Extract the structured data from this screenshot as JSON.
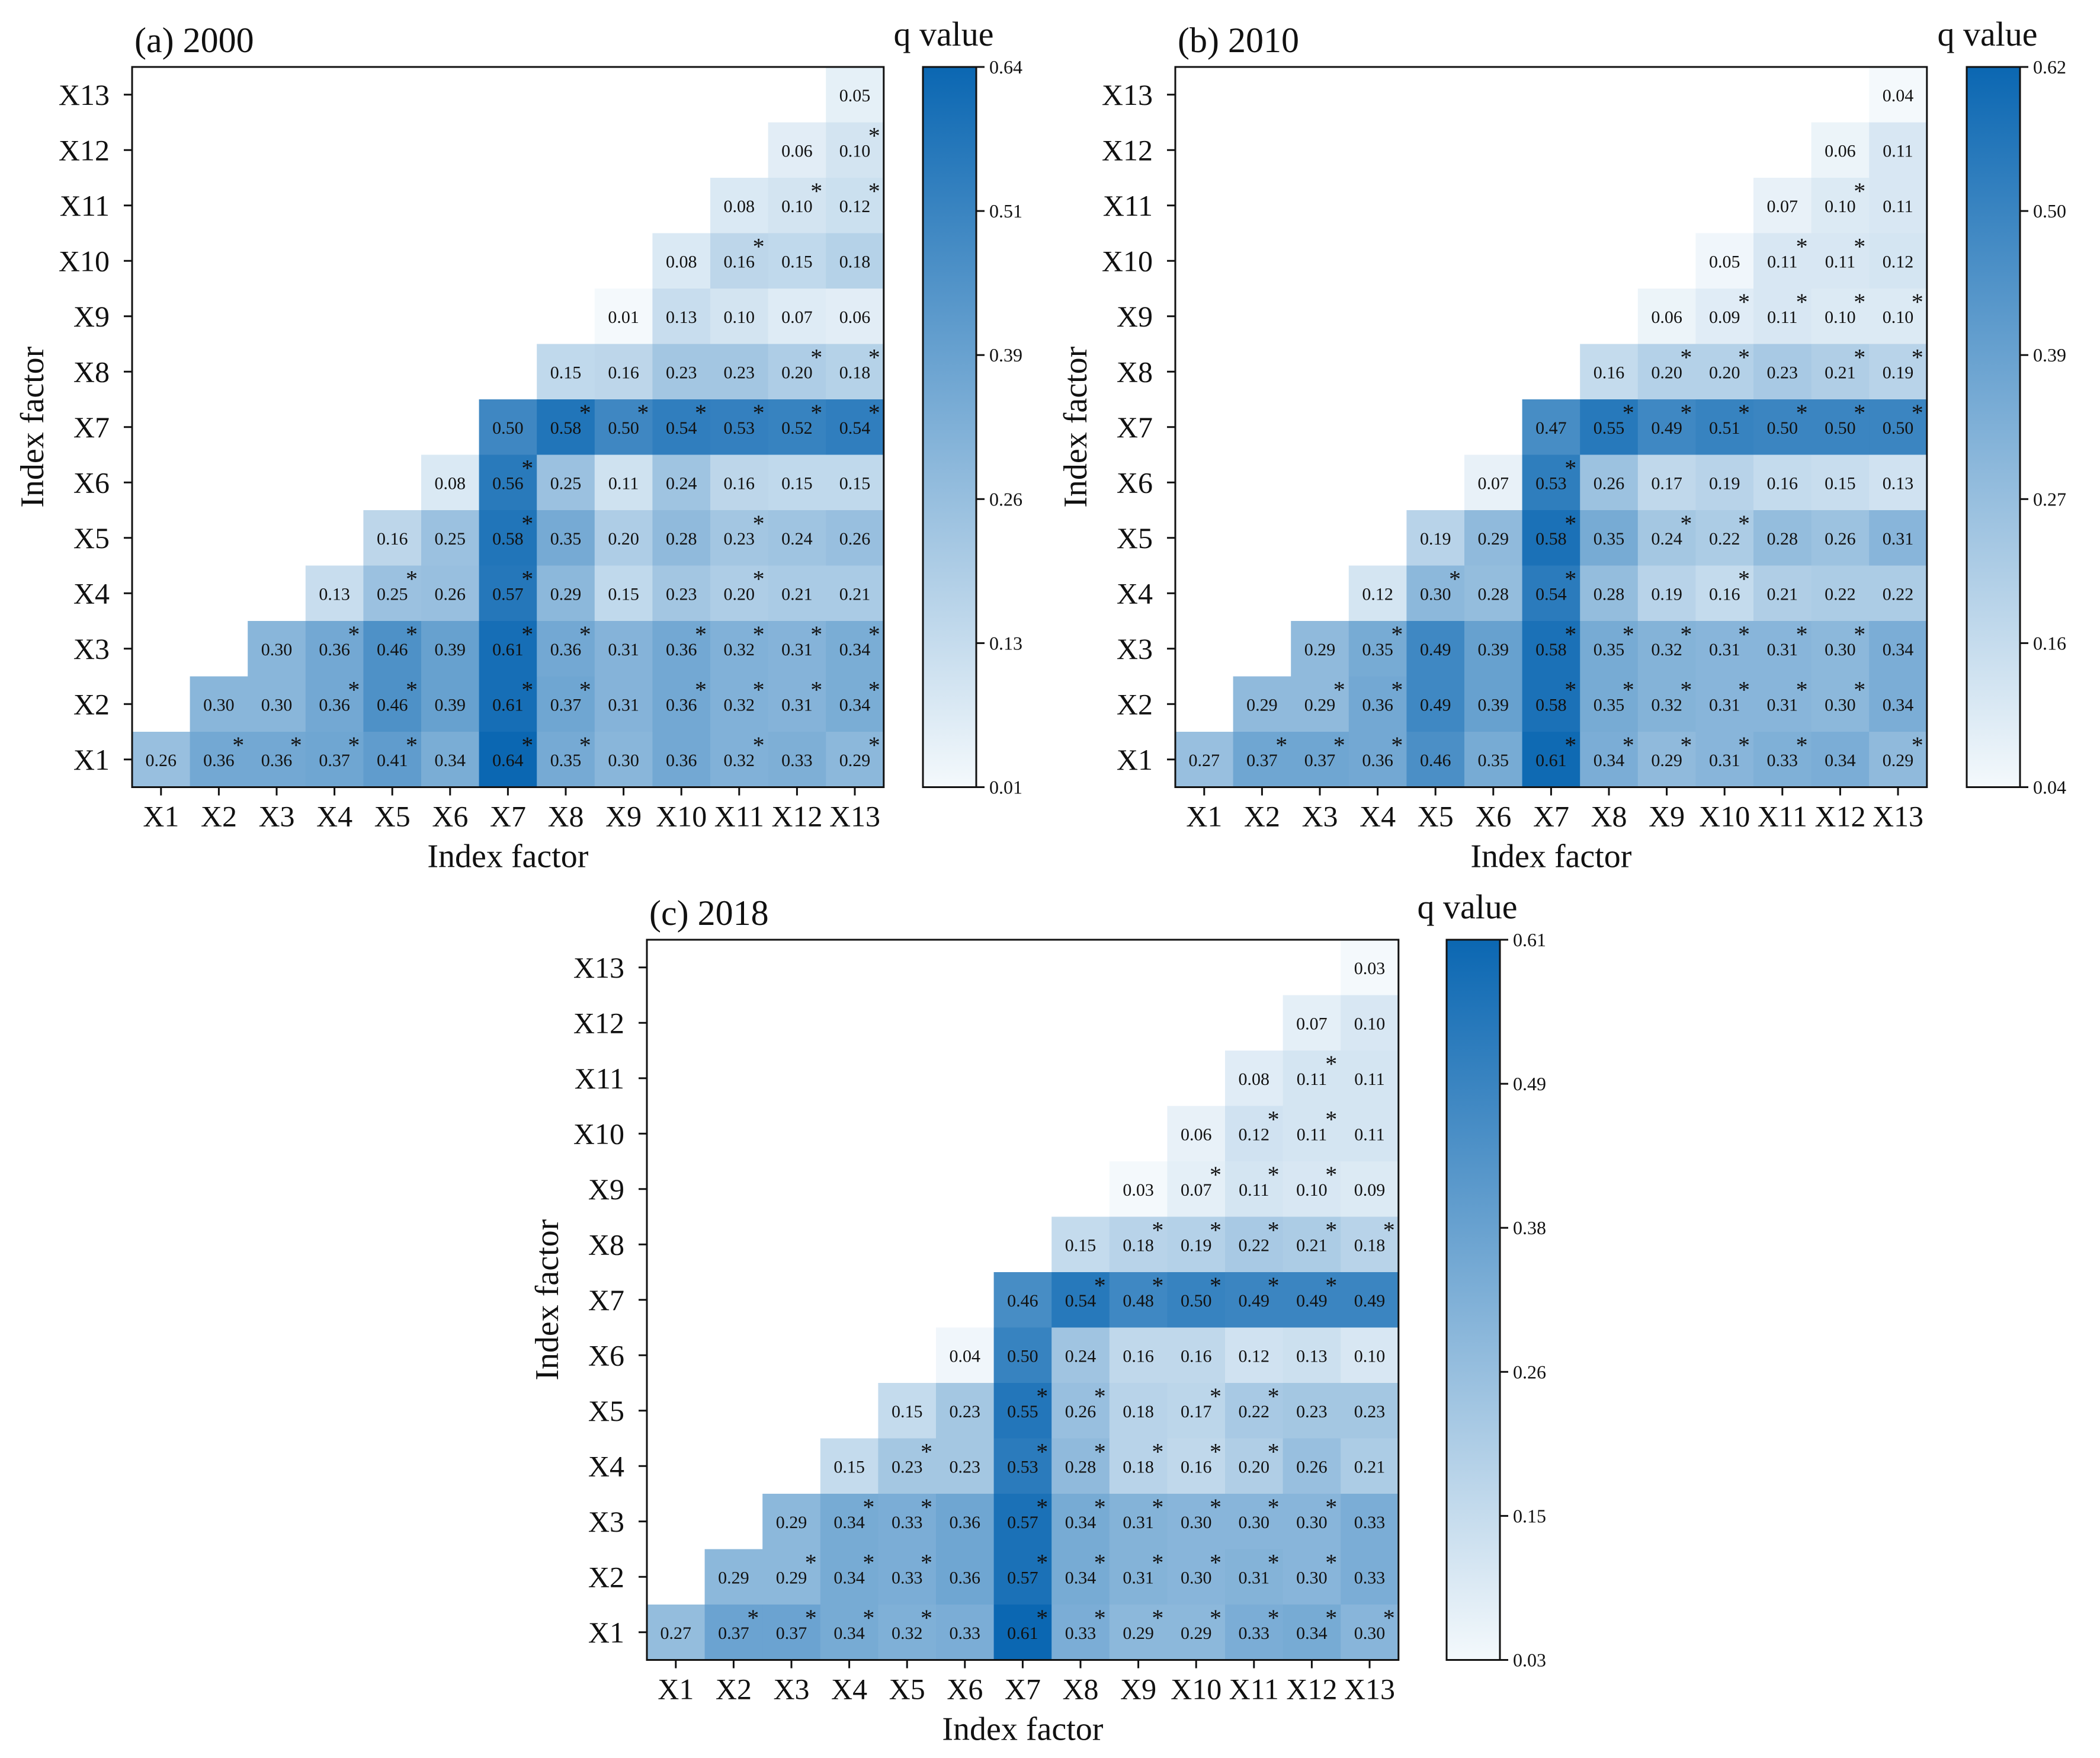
{
  "figure": {
    "colors": {
      "low": "#f4f9fc",
      "high": "#0b67b2",
      "text": "#111111"
    },
    "colorbar_title": "q value"
  },
  "chart_data": [
    {
      "type": "heatmap",
      "title": "(a) 2000",
      "xlabel": "Index factor",
      "ylabel": "Index factor",
      "categories": [
        "X1",
        "X2",
        "X3",
        "X4",
        "X5",
        "X6",
        "X7",
        "X8",
        "X9",
        "X10",
        "X11",
        "X12",
        "X13"
      ],
      "colorbar": {
        "min": 0.01,
        "max": 0.64,
        "ticks": [
          "0.01",
          "0.13",
          "0.26",
          "0.39",
          "0.51",
          "0.64"
        ]
      },
      "rows": [
        {
          "y": "X13",
          "start": 12,
          "values": [
            "0.05"
          ],
          "stars": [
            0
          ]
        },
        {
          "y": "X12",
          "start": 11,
          "values": [
            "0.06",
            "0.10"
          ],
          "stars": [
            0,
            1
          ]
        },
        {
          "y": "X11",
          "start": 10,
          "values": [
            "0.08",
            "0.10",
            "0.12"
          ],
          "stars": [
            0,
            1,
            1
          ]
        },
        {
          "y": "X10",
          "start": 9,
          "values": [
            "0.08",
            "0.16",
            "0.15",
            "0.18"
          ],
          "stars": [
            0,
            1,
            0,
            0
          ]
        },
        {
          "y": "X9",
          "start": 8,
          "values": [
            "0.01",
            "0.13",
            "0.10",
            "0.07",
            "0.06"
          ],
          "stars": [
            0,
            0,
            0,
            0,
            0
          ]
        },
        {
          "y": "X8",
          "start": 7,
          "values": [
            "0.15",
            "0.16",
            "0.23",
            "0.23",
            "0.20",
            "0.18"
          ],
          "stars": [
            0,
            0,
            0,
            0,
            1,
            1
          ]
        },
        {
          "y": "X7",
          "start": 6,
          "values": [
            "0.50",
            "0.58",
            "0.50",
            "0.54",
            "0.53",
            "0.52",
            "0.54"
          ],
          "stars": [
            0,
            1,
            1,
            1,
            1,
            1,
            1
          ]
        },
        {
          "y": "X6",
          "start": 5,
          "values": [
            "0.08",
            "0.56",
            "0.25",
            "0.11",
            "0.24",
            "0.16",
            "0.15",
            "0.15"
          ],
          "stars": [
            0,
            1,
            0,
            0,
            0,
            0,
            0,
            0
          ]
        },
        {
          "y": "X5",
          "start": 4,
          "values": [
            "0.16",
            "0.25",
            "0.58",
            "0.35",
            "0.20",
            "0.28",
            "0.23",
            "0.24",
            "0.26"
          ],
          "stars": [
            0,
            0,
            1,
            0,
            0,
            0,
            1,
            0,
            0
          ]
        },
        {
          "y": "X4",
          "start": 3,
          "values": [
            "0.13",
            "0.25",
            "0.26",
            "0.57",
            "0.29",
            "0.15",
            "0.23",
            "0.20",
            "0.21",
            "0.21"
          ],
          "stars": [
            0,
            1,
            0,
            1,
            0,
            0,
            0,
            1,
            0,
            0
          ]
        },
        {
          "y": "X3",
          "start": 2,
          "values": [
            "0.30",
            "0.36",
            "0.46",
            "0.39",
            "0.61",
            "0.36",
            "0.31",
            "0.36",
            "0.32",
            "0.31",
            "0.34"
          ],
          "stars": [
            0,
            1,
            1,
            0,
            1,
            1,
            0,
            1,
            1,
            1,
            1
          ]
        },
        {
          "y": "X2",
          "start": 1,
          "values": [
            "0.30",
            "0.30",
            "0.36",
            "0.46",
            "0.39",
            "0.61",
            "0.37",
            "0.31",
            "0.36",
            "0.32",
            "0.31",
            "0.34"
          ],
          "stars": [
            0,
            0,
            1,
            1,
            0,
            1,
            1,
            0,
            1,
            1,
            1,
            1
          ]
        },
        {
          "y": "X1",
          "start": 0,
          "values": [
            "0.26",
            "0.36",
            "0.36",
            "0.37",
            "0.41",
            "0.34",
            "0.64",
            "0.35",
            "0.30",
            "0.36",
            "0.32",
            "0.33",
            "0.29"
          ],
          "stars": [
            0,
            1,
            1,
            1,
            1,
            0,
            1,
            1,
            0,
            0,
            1,
            0,
            1
          ]
        }
      ]
    },
    {
      "type": "heatmap",
      "title": "(b) 2010",
      "xlabel": "Index factor",
      "ylabel": "Index factor",
      "categories": [
        "X1",
        "X2",
        "X3",
        "X4",
        "X5",
        "X6",
        "X7",
        "X8",
        "X9",
        "X10",
        "X11",
        "X12",
        "X13"
      ],
      "colorbar": {
        "min": 0.04,
        "max": 0.62,
        "ticks": [
          "0.04",
          "0.16",
          "0.27",
          "0.39",
          "0.50",
          "0.62"
        ]
      },
      "rows": [
        {
          "y": "X13",
          "start": 12,
          "values": [
            "0.04"
          ],
          "stars": [
            0
          ]
        },
        {
          "y": "X12",
          "start": 11,
          "values": [
            "0.06",
            "0.11"
          ],
          "stars": [
            0,
            0
          ]
        },
        {
          "y": "X11",
          "start": 10,
          "values": [
            "0.07",
            "0.10",
            "0.11"
          ],
          "stars": [
            0,
            1,
            0
          ]
        },
        {
          "y": "X10",
          "start": 9,
          "values": [
            "0.05",
            "0.11",
            "0.11",
            "0.12"
          ],
          "stars": [
            0,
            1,
            1,
            0
          ]
        },
        {
          "y": "X9",
          "start": 8,
          "values": [
            "0.06",
            "0.09",
            "0.11",
            "0.10",
            "0.10"
          ],
          "stars": [
            0,
            1,
            1,
            1,
            1
          ]
        },
        {
          "y": "X8",
          "start": 7,
          "values": [
            "0.16",
            "0.20",
            "0.20",
            "0.23",
            "0.21",
            "0.19"
          ],
          "stars": [
            0,
            1,
            1,
            0,
            1,
            1
          ]
        },
        {
          "y": "X7",
          "start": 6,
          "values": [
            "0.47",
            "0.55",
            "0.49",
            "0.51",
            "0.50",
            "0.50",
            "0.50"
          ],
          "stars": [
            0,
            1,
            1,
            1,
            1,
            1,
            1
          ]
        },
        {
          "y": "X6",
          "start": 5,
          "values": [
            "0.07",
            "0.53",
            "0.26",
            "0.17",
            "0.19",
            "0.16",
            "0.15",
            "0.13"
          ],
          "stars": [
            0,
            1,
            0,
            0,
            0,
            0,
            0,
            0
          ]
        },
        {
          "y": "X5",
          "start": 4,
          "values": [
            "0.19",
            "0.29",
            "0.58",
            "0.35",
            "0.24",
            "0.22",
            "0.28",
            "0.26",
            "0.31"
          ],
          "stars": [
            0,
            0,
            1,
            0,
            1,
            1,
            0,
            0,
            0
          ]
        },
        {
          "y": "X4",
          "start": 3,
          "values": [
            "0.12",
            "0.30",
            "0.28",
            "0.54",
            "0.28",
            "0.19",
            "0.16",
            "0.21",
            "0.22",
            "0.22"
          ],
          "stars": [
            0,
            1,
            0,
            1,
            0,
            0,
            1,
            0,
            0,
            0
          ]
        },
        {
          "y": "X3",
          "start": 2,
          "values": [
            "0.29",
            "0.35",
            "0.49",
            "0.39",
            "0.58",
            "0.35",
            "0.32",
            "0.31",
            "0.31",
            "0.30",
            "0.34"
          ],
          "stars": [
            0,
            1,
            0,
            0,
            1,
            1,
            1,
            1,
            1,
            1,
            0
          ]
        },
        {
          "y": "X2",
          "start": 1,
          "values": [
            "0.29",
            "0.29",
            "0.36",
            "0.49",
            "0.39",
            "0.58",
            "0.35",
            "0.32",
            "0.31",
            "0.31",
            "0.30",
            "0.34"
          ],
          "stars": [
            0,
            1,
            1,
            0,
            0,
            1,
            1,
            1,
            1,
            1,
            1,
            0
          ]
        },
        {
          "y": "X1",
          "start": 0,
          "values": [
            "0.27",
            "0.37",
            "0.37",
            "0.36",
            "0.46",
            "0.35",
            "0.61",
            "0.34",
            "0.29",
            "0.31",
            "0.33",
            "0.34",
            "0.29"
          ],
          "stars": [
            0,
            1,
            1,
            1,
            0,
            0,
            1,
            1,
            1,
            1,
            1,
            0,
            1
          ]
        }
      ]
    },
    {
      "type": "heatmap",
      "title": "(c) 2018",
      "xlabel": "Index factor",
      "ylabel": "Index factor",
      "categories": [
        "X1",
        "X2",
        "X3",
        "X4",
        "X5",
        "X6",
        "X7",
        "X8",
        "X9",
        "X10",
        "X11",
        "X12",
        "X13"
      ],
      "colorbar": {
        "min": 0.03,
        "max": 0.61,
        "ticks": [
          "0.03",
          "0.15",
          "0.26",
          "0.38",
          "0.49",
          "0.61"
        ]
      },
      "rows": [
        {
          "y": "X13",
          "start": 12,
          "values": [
            "0.03"
          ],
          "stars": [
            0
          ]
        },
        {
          "y": "X12",
          "start": 11,
          "values": [
            "0.07",
            "0.10"
          ],
          "stars": [
            0,
            0
          ]
        },
        {
          "y": "X11",
          "start": 10,
          "values": [
            "0.08",
            "0.11",
            "0.11"
          ],
          "stars": [
            0,
            1,
            0
          ]
        },
        {
          "y": "X10",
          "start": 9,
          "values": [
            "0.06",
            "0.12",
            "0.11",
            "0.11"
          ],
          "stars": [
            0,
            1,
            1,
            0
          ]
        },
        {
          "y": "X9",
          "start": 8,
          "values": [
            "0.03",
            "0.07",
            "0.11",
            "0.10",
            "0.09"
          ],
          "stars": [
            0,
            1,
            1,
            1,
            0
          ]
        },
        {
          "y": "X8",
          "start": 7,
          "values": [
            "0.15",
            "0.18",
            "0.19",
            "0.22",
            "0.21",
            "0.18"
          ],
          "stars": [
            0,
            1,
            1,
            1,
            1,
            1
          ]
        },
        {
          "y": "X7",
          "start": 6,
          "values": [
            "0.46",
            "0.54",
            "0.48",
            "0.50",
            "0.49",
            "0.49",
            "0.49"
          ],
          "stars": [
            0,
            1,
            1,
            1,
            1,
            1,
            0
          ]
        },
        {
          "y": "X6",
          "start": 5,
          "values": [
            "0.04",
            "0.50",
            "0.24",
            "0.16",
            "0.16",
            "0.12",
            "0.13",
            "0.10"
          ],
          "stars": [
            0,
            0,
            0,
            0,
            0,
            0,
            0,
            0
          ]
        },
        {
          "y": "X5",
          "start": 4,
          "values": [
            "0.15",
            "0.23",
            "0.55",
            "0.26",
            "0.18",
            "0.17",
            "0.22",
            "0.23",
            "0.23"
          ],
          "stars": [
            0,
            0,
            1,
            1,
            0,
            1,
            1,
            0,
            0
          ]
        },
        {
          "y": "X4",
          "start": 3,
          "values": [
            "0.15",
            "0.23",
            "0.23",
            "0.53",
            "0.28",
            "0.18",
            "0.16",
            "0.20",
            "0.26",
            "0.21"
          ],
          "stars": [
            0,
            1,
            0,
            1,
            1,
            1,
            1,
            1,
            0,
            0
          ]
        },
        {
          "y": "X3",
          "start": 2,
          "values": [
            "0.29",
            "0.34",
            "0.33",
            "0.36",
            "0.57",
            "0.34",
            "0.31",
            "0.30",
            "0.30",
            "0.30",
            "0.33"
          ],
          "stars": [
            0,
            1,
            1,
            0,
            1,
            1,
            1,
            1,
            1,
            1,
            0
          ]
        },
        {
          "y": "X2",
          "start": 1,
          "values": [
            "0.29",
            "0.29",
            "0.34",
            "0.33",
            "0.36",
            "0.57",
            "0.34",
            "0.31",
            "0.30",
            "0.31",
            "0.30",
            "0.33"
          ],
          "stars": [
            0,
            1,
            1,
            1,
            0,
            1,
            1,
            1,
            1,
            1,
            1,
            0
          ]
        },
        {
          "y": "X1",
          "start": 0,
          "values": [
            "0.27",
            "0.37",
            "0.37",
            "0.34",
            "0.32",
            "0.33",
            "0.61",
            "0.33",
            "0.29",
            "0.29",
            "0.33",
            "0.34",
            "0.30"
          ],
          "stars": [
            0,
            1,
            1,
            1,
            1,
            0,
            1,
            1,
            1,
            1,
            1,
            1,
            1
          ]
        }
      ]
    }
  ]
}
